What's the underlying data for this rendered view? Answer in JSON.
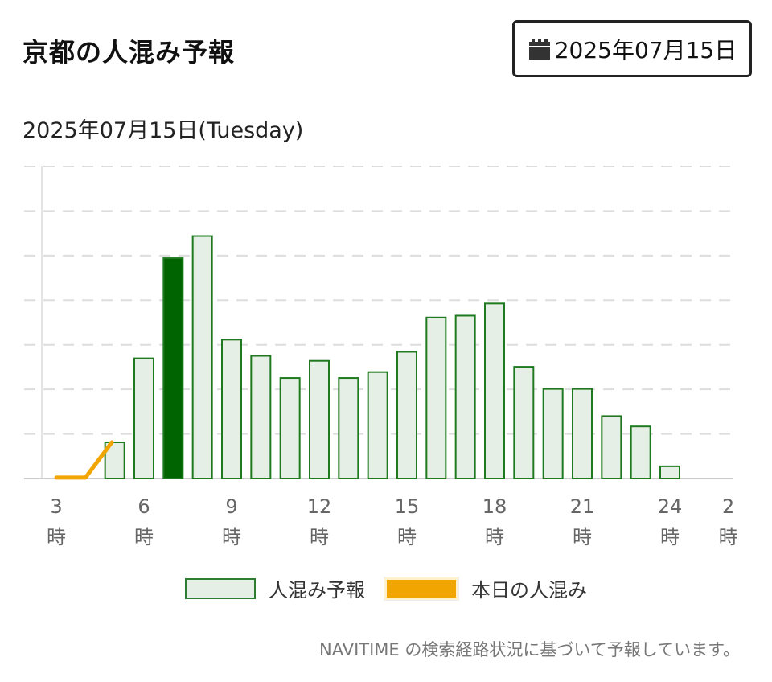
{
  "header": {
    "title": "京都の人混み予報",
    "date_button_label": "2025年07月15日",
    "date_button_icon": "calendar-icon"
  },
  "subtitle": "2025年07月15日(Tuesday)",
  "legend": {
    "forecast_label": "人混み予報",
    "today_label": "本日の人混み"
  },
  "note": "NAVITIME の検索経路状況に基づいて予報しています。",
  "colors": {
    "bar_fill": "#e6efe6",
    "bar_stroke": "#1f7a1f",
    "current_bar": "#006400",
    "today_line": "#f0a500",
    "grid": "#dddddd"
  },
  "chart_data": {
    "type": "bar",
    "x_tick_labels": [
      {
        "hour": 3,
        "label": "3",
        "unit": "時"
      },
      {
        "hour": 6,
        "label": "6",
        "unit": "時"
      },
      {
        "hour": 9,
        "label": "9",
        "unit": "時"
      },
      {
        "hour": 12,
        "label": "12",
        "unit": "時"
      },
      {
        "hour": 15,
        "label": "15",
        "unit": "時"
      },
      {
        "hour": 18,
        "label": "18",
        "unit": "時"
      },
      {
        "hour": 21,
        "label": "21",
        "unit": "時"
      },
      {
        "hour": 24,
        "label": "24",
        "unit": "時"
      },
      {
        "hour": 26,
        "label": "2",
        "unit": "時"
      }
    ],
    "x_range": [
      2.5,
      26.5
    ],
    "ylim": [
      0,
      100
    ],
    "grid": "horizontal-dashed",
    "legend_position": "bottom",
    "series": [
      {
        "type": "bar",
        "hours": [
          5,
          6,
          7,
          8,
          9,
          10,
          11,
          12,
          13,
          14,
          15,
          16,
          17,
          18,
          19,
          20,
          21,
          22,
          23,
          24
        ],
        "values": [
          11.6,
          38.5,
          70.6,
          77.7,
          44.5,
          39.3,
          32.2,
          37.7,
          32.2,
          34.1,
          40.6,
          51.6,
          52.2,
          56.1,
          35.8,
          28.7,
          28.7,
          20.0,
          16.7,
          3.9
        ],
        "highlight_hour": 7
      },
      {
        "type": "line",
        "x": [
          3,
          4,
          4.9
        ],
        "values": [
          0.3,
          0.3,
          11.6
        ]
      }
    ]
  }
}
